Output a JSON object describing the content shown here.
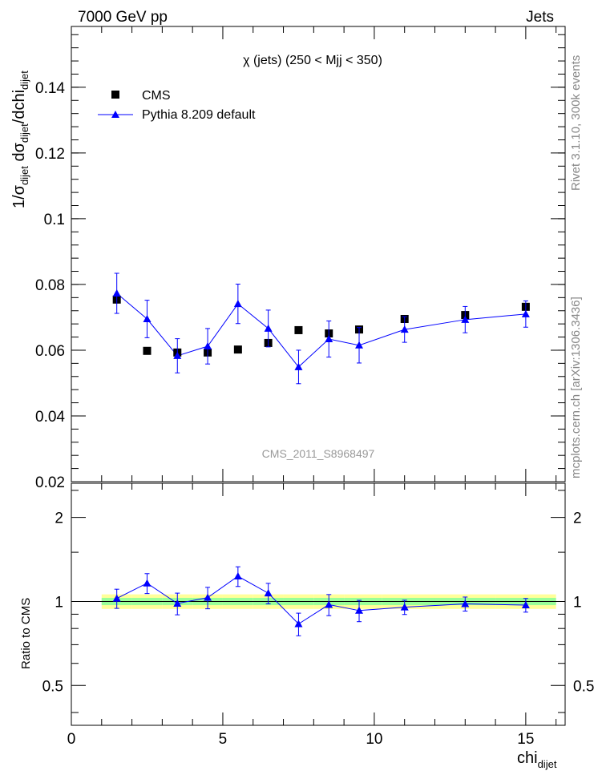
{
  "header": {
    "left": "7000 GeV pp",
    "right": "Jets"
  },
  "side_labels": {
    "rivet": "Rivet 3.1.10,  300k events",
    "mcplots": "mcplots.cern.ch [arXiv:1306.3436]"
  },
  "chart_data": [
    {
      "type": "scatter",
      "title": "χ (jets) (250 < Mjj <  350)",
      "watermark": "CMS_2011_S8968497",
      "ylabel": "1/σ_dijet dσ_dijet/dchi_dijet",
      "xlabel": "chi_dijet",
      "xlim": [
        0,
        16.3
      ],
      "ylim": [
        0.02,
        0.1585
      ],
      "yticks": [
        "0.02",
        "0.04",
        "0.06",
        "0.08",
        "0.1",
        "0.12",
        "0.14"
      ],
      "legend": {
        "placement": "top-left",
        "entries": [
          "CMS",
          "Pythia 8.209 default"
        ]
      },
      "x": [
        1.5,
        2.5,
        3.5,
        4.5,
        5.5,
        6.5,
        7.5,
        8.5,
        9.5,
        11,
        13,
        15
      ],
      "series": [
        {
          "name": "CMS",
          "color": "#000000",
          "marker": "square",
          "values": [
            0.0754,
            0.0598,
            0.0593,
            0.0593,
            0.0602,
            0.0622,
            0.0661,
            0.0651,
            0.0663,
            0.0695,
            0.0707,
            0.0732
          ]
        },
        {
          "name": "Pythia 8.209 default",
          "color": "#0000ff",
          "marker": "triangle",
          "values": [
            0.0773,
            0.0695,
            0.0583,
            0.0612,
            0.0741,
            0.0666,
            0.0549,
            0.0634,
            0.0615,
            0.0663,
            0.0693,
            0.071
          ],
          "errors": [
            0.0061,
            0.0057,
            0.0052,
            0.0054,
            0.006,
            0.0056,
            0.0051,
            0.0055,
            0.0054,
            0.0039,
            0.004,
            0.004
          ]
        }
      ]
    },
    {
      "type": "line",
      "ylabel": "Ratio to CMS",
      "xlabel": "chi_dijet",
      "xticks": [
        "0",
        "5",
        "10",
        "15"
      ],
      "yticks": [
        "0.5",
        "1",
        "2"
      ],
      "ylim": [
        0.36,
        2.65
      ],
      "yscale": "log",
      "band_yellow": 0.06,
      "band_green": 0.03
    }
  ]
}
